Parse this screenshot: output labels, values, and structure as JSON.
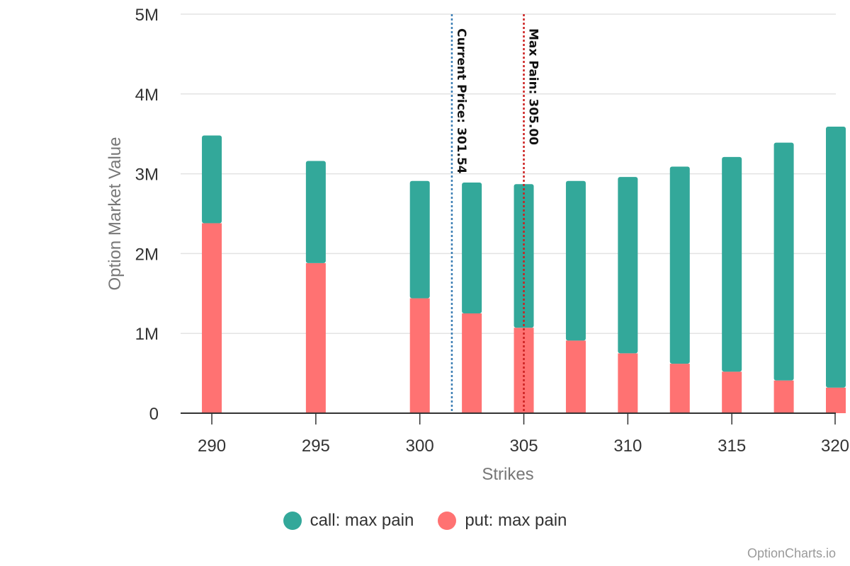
{
  "chart_data": {
    "type": "bar",
    "stacked": true,
    "xlabel": "Strikes",
    "ylabel": "Option Market Value",
    "xlim": [
      288.5,
      320
    ],
    "ylim": [
      0,
      5000000
    ],
    "x_ticks": [
      290,
      295,
      300,
      305,
      310,
      315,
      320
    ],
    "y_ticks": [
      0,
      1000000,
      2000000,
      3000000,
      4000000,
      5000000
    ],
    "y_tick_labels": [
      "0",
      "1M",
      "2M",
      "3M",
      "4M",
      "5M"
    ],
    "grid": true,
    "x": [
      290,
      295,
      300,
      302.5,
      305,
      307.5,
      310,
      312.5,
      315,
      317.5,
      320
    ],
    "series": [
      {
        "name": "put: max pain",
        "color": "#ff7272",
        "values": [
          2380000,
          1880000,
          1440000,
          1250000,
          1070000,
          910000,
          750000,
          620000,
          520000,
          410000,
          320000
        ]
      },
      {
        "name": "call: max pain",
        "color": "#33a89a",
        "values": [
          1100000,
          1280000,
          1470000,
          1640000,
          1800000,
          2000000,
          2210000,
          2470000,
          2690000,
          2980000,
          3270000
        ]
      }
    ],
    "reference_lines": [
      {
        "label": "Current Price: 301.54",
        "value": 301.54,
        "color": "#3d7fb5"
      },
      {
        "label": "Max Pain: 305.00",
        "value": 305.0,
        "color": "#cc1f1f"
      }
    ],
    "legend_position": "bottom",
    "legend": [
      "call: max pain",
      "put: max pain"
    ]
  },
  "credit": "OptionCharts.io"
}
